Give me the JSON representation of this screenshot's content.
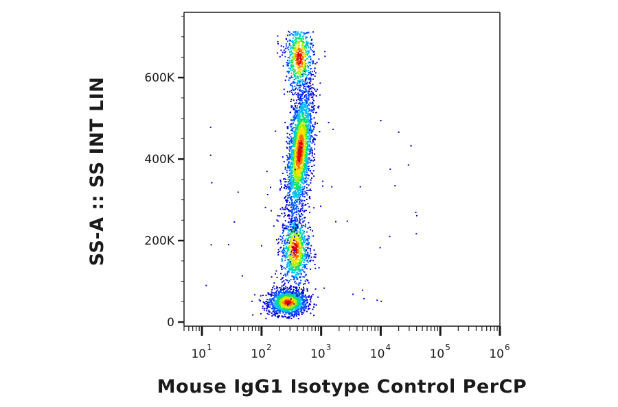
{
  "chart_data": {
    "type": "scatter",
    "subtype": "flow-cytometry-density-dot-plot",
    "xlabel": "Mouse IgG1 Isotype Control PerCP",
    "ylabel": "SS-A :: SS INT LIN",
    "x_scale": "log",
    "xlim": [
      5,
      1000000
    ],
    "ylim": [
      -10000,
      760000
    ],
    "x_ticks": [
      {
        "value": 10,
        "base": "10",
        "exp": "1"
      },
      {
        "value": 100,
        "base": "10",
        "exp": "2"
      },
      {
        "value": 1000,
        "base": "10",
        "exp": "3"
      },
      {
        "value": 10000,
        "base": "10",
        "exp": "4"
      },
      {
        "value": 100000,
        "base": "10",
        "exp": "5"
      },
      {
        "value": 1000000,
        "base": "10",
        "exp": "6"
      }
    ],
    "y_ticks": [
      {
        "value": 0,
        "label": "0"
      },
      {
        "value": 200000,
        "label": "200K"
      },
      {
        "value": 400000,
        "label": "400K"
      },
      {
        "value": 600000,
        "label": "600K"
      }
    ],
    "grid": false,
    "legend": "none",
    "color_map": "density (blue → cyan → green → yellow → red)",
    "colors": [
      "#0000d0",
      "#0050ff",
      "#00c0ff",
      "#00e070",
      "#a0f000",
      "#ffe000",
      "#ff7000",
      "#e00000"
    ],
    "populations": [
      {
        "x_center": 270,
        "y_center": 50000,
        "density": "high",
        "peak_color": "#e00000"
      },
      {
        "x_center": 360,
        "y_center": 180000,
        "density": "medium",
        "peak_color": "#00c0ff"
      },
      {
        "x_center": 430,
        "y_center": 420000,
        "density": "high",
        "peak_color": "#e00000"
      },
      {
        "x_center": 420,
        "y_center": 650000,
        "density": "low",
        "peak_color": "#0050ff"
      }
    ]
  }
}
